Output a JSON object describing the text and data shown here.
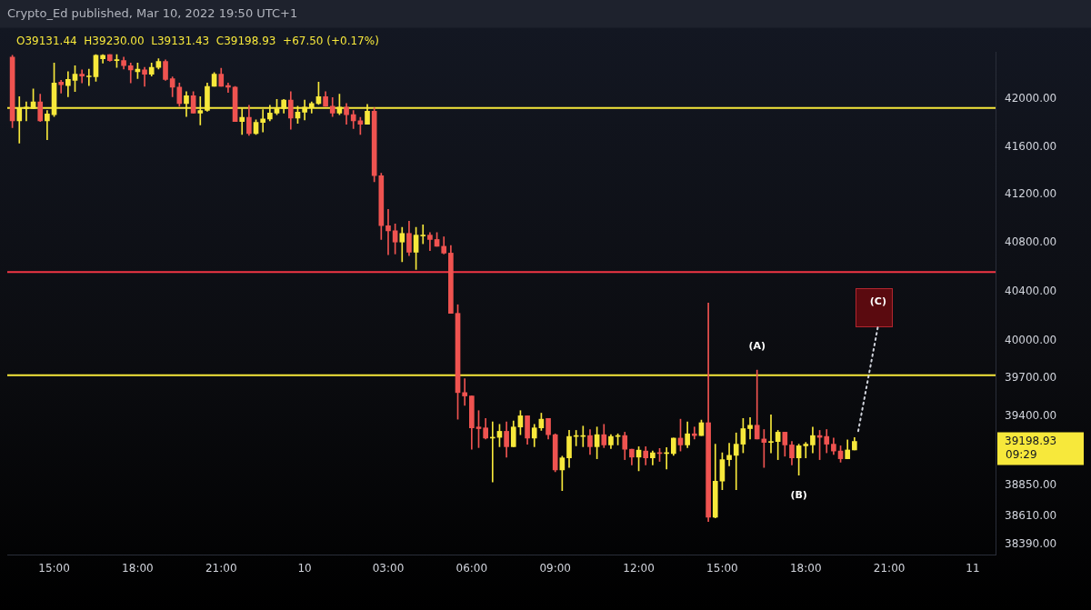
{
  "chart_data": {
    "type": "candlestick",
    "title": "Crypto_Ed published, Mar 10, 2022 19:50 UTC+1",
    "annotations": [
      "O39131.44  H39230.00  L39131.43  C39198.93  +67.50 (+0.17%)",
      {
        "text": "(A)",
        "x": "2022-03-10T16:15",
        "y": 39767
      },
      {
        "text": "(B)",
        "x": "2022-03-10T17:45",
        "y": 38933
      },
      {
        "text": "(C)",
        "x": "2022-03-10T20:36",
        "y": 40127
      },
      "09:29"
    ],
    "colors": [
      "#ef5350",
      "#f7e83b",
      "#f7e83b",
      "#f7e83b",
      "#ef5350",
      "#f7e83b",
      "#f7e83b",
      "#ef5350",
      "#f7e83b",
      "#f7e83b",
      "#ef5350",
      "#f7e83b",
      "#f7e83b",
      "#f7e83b",
      "#ef5350",
      "#f7e83b",
      "#ef5350",
      "#ef5350",
      "#f7e83b",
      "#ef5350",
      "#f7e83b",
      "#f7e83b",
      "#ef5350",
      "#ef5350",
      "#ef5350",
      "#f7e83b",
      "#ef5350",
      "#f7e83b",
      "#f7e83b",
      "#f7e83b",
      "#ef5350",
      "#ef5350",
      "#ef5350",
      "#f7e83b",
      "#ef5350",
      "#f7e83b",
      "#f7e83b",
      "#f7e83b",
      "#f7e83b",
      "#f7e83b",
      "#ef5350",
      "#f7e83b",
      "#f7e83b",
      "#f7e83b",
      "#f7e83b",
      "#ef5350",
      "#ef5350",
      "#f7e83b",
      "#ef5350",
      "#ef5350",
      "#ef5350",
      "#f7e83b",
      "#ef5350",
      "#ef5350",
      "#ef5350",
      "#ef5350",
      "#f7e83b",
      "#ef5350",
      "#f7e83b",
      "#f7e83b",
      "#ef5350",
      "#ef5350",
      "#ef5350",
      "#ef5350",
      "#ef5350",
      "#ef5350",
      "#ef5350",
      "#ef5350",
      "#ef5350",
      "#f7e83b",
      "#f7e83b",
      "#ef5350",
      "#f7e83b",
      "#f7e83b",
      "#ef5350",
      "#f7e83b",
      "#f7e83b",
      "#ef5350",
      "#ef5350",
      "#f7e83b",
      "#f7e83b",
      "#f7e83b",
      "#f7e83b",
      "#ef5350",
      "#f7e83b",
      "#ef5350",
      "#f7e83b",
      "#f7e83b",
      "#ef5350",
      "#ef5350",
      "#f7e83b",
      "#ef5350",
      "#f7e83b",
      "#ef5350",
      "#f7e83b",
      "#f7e83b",
      "#ef5350",
      "#f7e83b",
      "#ef5350",
      "#f7e83b",
      "#ef5350",
      "#f7e83b",
      "#f7e83b",
      "#f7e83b",
      "#f7e83b",
      "#f7e83b",
      "#f7e83b",
      "#ef5350",
      "#ef5350",
      "#f7e83b",
      "#f7e83b",
      "#ef5350",
      "#ef5350",
      "#f7e83b",
      "#f7e83b",
      "#f7e83b",
      "#ef5350",
      "#ef5350",
      "#ef5350",
      "#ef5350",
      "#f7e83b",
      "#f7e83b"
    ],
    "log": true,
    "xlim": [
      "2022-03-09T13:19",
      "2022-03-11T00:49"
    ],
    "xticks": [
      {
        "value": "2022-03-09T15:00",
        "label": "15:00"
      },
      {
        "value": "2022-03-09T18:00",
        "label": "18:00"
      },
      {
        "value": "2022-03-09T21:00",
        "label": "21:00"
      },
      {
        "value": "2022-03-10",
        "label": "10"
      },
      {
        "value": "2022-03-10T03:00",
        "label": "03:00"
      },
      {
        "value": "2022-03-10T06:00",
        "label": "06:00"
      },
      {
        "value": "2022-03-10T09:00",
        "label": "09:00"
      },
      {
        "value": "2022-03-10T12:00",
        "label": "12:00"
      },
      {
        "value": "2022-03-10T15:00",
        "label": "15:00"
      },
      {
        "value": "2022-03-10T18:00",
        "label": "18:00"
      },
      {
        "value": "2022-03-10T21:00",
        "label": "21:00"
      },
      {
        "value": "2022-03-11",
        "label": "11"
      }
    ],
    "ylim": [
      38310,
      42400
    ],
    "yticks": [
      {
        "value": 42000,
        "label": "42000.00"
      },
      {
        "value": 41600,
        "label": "41600.00"
      },
      {
        "value": 41200,
        "label": "41200.00"
      },
      {
        "value": 40800,
        "label": "40800.00"
      },
      {
        "value": 40400,
        "label": "40400.00"
      },
      {
        "value": 40000,
        "label": "40000.00"
      },
      {
        "value": 39700,
        "label": "39700.00"
      },
      {
        "value": 39400,
        "label": "39400.00"
      },
      39198.93,
      {
        "value": 38850,
        "label": "38850.00"
      },
      {
        "value": 38610,
        "label": "38610.00"
      },
      {
        "value": 38390,
        "label": "38390.00"
      }
    ],
    "ref_lines": [
      {
        "axis": "y",
        "value": 41928,
        "color": "#f7e83b"
      },
      {
        "axis": "y",
        "value": 40562,
        "color": "#f23645"
      },
      {
        "axis": "y",
        "value": 39725,
        "color": "#f7e83b"
      }
    ],
    "x": [
      "2022-03-09T13:30",
      "2022-03-09T13:45",
      "2022-03-09T14:00",
      "2022-03-09T14:15",
      "2022-03-09T14:30",
      "2022-03-09T14:45",
      "2022-03-09T15:00",
      "2022-03-09T15:15",
      "2022-03-09T15:30",
      "2022-03-09T15:45",
      "2022-03-09T16:00",
      "2022-03-09T16:15",
      "2022-03-09T16:30",
      "2022-03-09T16:45",
      "2022-03-09T17:00",
      "2022-03-09T17:15",
      "2022-03-09T17:30",
      "2022-03-09T17:45",
      "2022-03-09T18:00",
      "2022-03-09T18:15",
      "2022-03-09T18:30",
      "2022-03-09T18:45",
      "2022-03-09T19:00",
      "2022-03-09T19:15",
      "2022-03-09T19:30",
      "2022-03-09T19:45",
      "2022-03-09T20:00",
      "2022-03-09T20:15",
      "2022-03-09T20:30",
      "2022-03-09T20:45",
      "2022-03-09T21:00",
      "2022-03-09T21:15",
      "2022-03-09T21:30",
      "2022-03-09T21:45",
      "2022-03-09T22:00",
      "2022-03-09T22:15",
      "2022-03-09T22:30",
      "2022-03-09T22:45",
      "2022-03-09T23:00",
      "2022-03-09T23:15",
      "2022-03-09T23:30",
      "2022-03-09T23:45",
      "2022-03-10T00:00",
      "2022-03-10T00:15",
      "2022-03-10T00:30",
      "2022-03-10T00:45",
      "2022-03-10T01:00",
      "2022-03-10T01:15",
      "2022-03-10T01:30",
      "2022-03-10T01:45",
      "2022-03-10T02:00",
      "2022-03-10T02:15",
      "2022-03-10T02:30",
      "2022-03-10T02:45",
      "2022-03-10T03:00",
      "2022-03-10T03:15",
      "2022-03-10T03:30",
      "2022-03-10T03:45",
      "2022-03-10T04:00",
      "2022-03-10T04:15",
      "2022-03-10T04:30",
      "2022-03-10T04:45",
      "2022-03-10T05:00",
      "2022-03-10T05:15",
      "2022-03-10T05:30",
      "2022-03-10T05:45",
      "2022-03-10T06:00",
      "2022-03-10T06:15",
      "2022-03-10T06:30",
      "2022-03-10T06:45",
      "2022-03-10T07:00",
      "2022-03-10T07:15",
      "2022-03-10T07:30",
      "2022-03-10T07:45",
      "2022-03-10T08:00",
      "2022-03-10T08:15",
      "2022-03-10T08:30",
      "2022-03-10T08:45",
      "2022-03-10T09:00",
      "2022-03-10T09:15",
      "2022-03-10T09:30",
      "2022-03-10T09:45",
      "2022-03-10T10:00",
      "2022-03-10T10:15",
      "2022-03-10T10:30",
      "2022-03-10T10:45",
      "2022-03-10T11:00",
      "2022-03-10T11:15",
      "2022-03-10T11:30",
      "2022-03-10T11:45",
      "2022-03-10T12:00",
      "2022-03-10T12:15",
      "2022-03-10T12:30",
      "2022-03-10T12:45",
      "2022-03-10T13:00",
      "2022-03-10T13:15",
      "2022-03-10T13:30",
      "2022-03-10T13:45",
      "2022-03-10T14:00",
      "2022-03-10T14:15",
      "2022-03-10T14:30",
      "2022-03-10T14:45",
      "2022-03-10T15:00",
      "2022-03-10T15:15",
      "2022-03-10T15:30",
      "2022-03-10T15:45",
      "2022-03-10T16:00",
      "2022-03-10T16:15",
      "2022-03-10T16:30",
      "2022-03-10T16:45",
      "2022-03-10T17:00",
      "2022-03-10T17:15",
      "2022-03-10T17:30",
      "2022-03-10T17:45",
      "2022-03-10T18:00",
      "2022-03-10T18:15",
      "2022-03-10T18:30",
      "2022-03-10T18:45",
      "2022-03-10T19:00",
      "2022-03-10T19:15",
      "2022-03-10T19:30",
      "2022-03-10T19:45"
    ],
    "ohlc": [
      [
        42359,
        42374,
        41761,
        41819
      ],
      [
        41819,
        42022,
        41631,
        41928
      ],
      [
        41921,
        41978,
        41819,
        41935
      ],
      [
        41921,
        42088,
        41921,
        41978
      ],
      [
        41978,
        42044,
        41812,
        41819
      ],
      [
        41819,
        41906,
        41660,
        41877
      ],
      [
        41870,
        42308,
        41855,
        42139
      ],
      [
        42147,
        42161,
        42052,
        42125
      ],
      [
        42117,
        42235,
        42022,
        42169
      ],
      [
        42161,
        42286,
        42066,
        42213
      ],
      [
        42213,
        42250,
        42139,
        42198
      ],
      [
        42191,
        42257,
        42117,
        42198
      ],
      [
        42191,
        42381,
        42154,
        42374
      ],
      [
        42345,
        42381,
        42308,
        42374
      ],
      [
        42381,
        42381,
        42323,
        42330
      ],
      [
        42330,
        42381,
        42272,
        42337
      ],
      [
        42330,
        42359,
        42257,
        42286
      ],
      [
        42286,
        42308,
        42139,
        42250
      ],
      [
        42235,
        42308,
        42176,
        42257
      ],
      [
        42250,
        42272,
        42110,
        42213
      ],
      [
        42213,
        42308,
        42198,
        42272
      ],
      [
        42272,
        42345,
        42257,
        42323
      ],
      [
        42323,
        42337,
        42161,
        42169
      ],
      [
        42176,
        42191,
        42022,
        42103
      ],
      [
        42103,
        42139,
        41942,
        41964
      ],
      [
        41964,
        42066,
        41855,
        42030
      ],
      [
        42030,
        42066,
        41884,
        41884
      ],
      [
        41884,
        42022,
        41783,
        41906
      ],
      [
        41906,
        42139,
        41899,
        42110
      ],
      [
        42110,
        42228,
        42110,
        42213
      ],
      [
        42213,
        42264,
        42110,
        42110
      ],
      [
        42117,
        42139,
        42059,
        42103
      ],
      [
        42103,
        42110,
        41812,
        41812
      ],
      [
        41812,
        41921,
        41703,
        41848
      ],
      [
        41848,
        41950,
        41696,
        41711
      ],
      [
        41711,
        41826,
        41703,
        41805
      ],
      [
        41805,
        41913,
        41725,
        41834
      ],
      [
        41834,
        41950,
        41819,
        41884
      ],
      [
        41884,
        42000,
        41870,
        41921
      ],
      [
        41921,
        42000,
        41884,
        41993
      ],
      [
        41993,
        42066,
        41747,
        41841
      ],
      [
        41841,
        41942,
        41797,
        41892
      ],
      [
        41892,
        41993,
        41826,
        41935
      ],
      [
        41935,
        41978,
        41884,
        41964
      ],
      [
        41964,
        42147,
        41957,
        42022
      ],
      [
        42022,
        42066,
        41942,
        41942
      ],
      [
        41942,
        42015,
        41855,
        41884
      ],
      [
        41884,
        42044,
        41870,
        41935
      ],
      [
        41935,
        41964,
        41790,
        41870
      ],
      [
        41870,
        41906,
        41754,
        41819
      ],
      [
        41819,
        41848,
        41703,
        41790
      ],
      [
        41790,
        41957,
        41790,
        41899
      ],
      [
        41899,
        41928,
        41307,
        41358
      ],
      [
        41358,
        41379,
        40829,
        40943
      ],
      [
        40943,
        41078,
        40703,
        40901
      ],
      [
        40901,
        40957,
        40710,
        40808
      ],
      [
        40808,
        40929,
        40646,
        40879
      ],
      [
        40879,
        40979,
        40696,
        40724
      ],
      [
        40724,
        40929,
        40583,
        40865
      ],
      [
        40858,
        40950,
        40794,
        40865
      ],
      [
        40865,
        40886,
        40738,
        40829
      ],
      [
        40829,
        40886,
        40773,
        40773
      ],
      [
        40773,
        40851,
        40710,
        40717
      ],
      [
        40717,
        40780,
        40225,
        40225
      ],
      [
        40225,
        40295,
        39375,
        39587
      ],
      [
        39587,
        39698,
        39485,
        39560
      ],
      [
        39560,
        39560,
        39137,
        39306
      ],
      [
        39313,
        39443,
        39150,
        39300
      ],
      [
        39306,
        39381,
        39218,
        39225
      ],
      [
        39225,
        39354,
        38879,
        39231
      ],
      [
        39231,
        39334,
        39157,
        39279
      ],
      [
        39279,
        39354,
        39075,
        39157
      ],
      [
        39157,
        39361,
        39157,
        39313
      ],
      [
        39313,
        39443,
        39252,
        39402
      ],
      [
        39402,
        39402,
        39177,
        39225
      ],
      [
        39225,
        39334,
        39157,
        39306
      ],
      [
        39306,
        39423,
        39286,
        39375
      ],
      [
        39381,
        39381,
        39218,
        39252
      ],
      [
        39252,
        39259,
        38960,
        38974
      ],
      [
        38974,
        39082,
        38812,
        39069
      ],
      [
        39069,
        39286,
        38994,
        39238
      ],
      [
        39238,
        39286,
        39164,
        39245
      ],
      [
        39238,
        39320,
        39157,
        39245
      ],
      [
        39245,
        39293,
        39096,
        39157
      ],
      [
        39157,
        39313,
        39062,
        39252
      ],
      [
        39252,
        39334,
        39150,
        39171
      ],
      [
        39171,
        39252,
        39143,
        39238
      ],
      [
        39238,
        39259,
        39171,
        39245
      ],
      [
        39245,
        39272,
        39055,
        39137
      ],
      [
        39137,
        39137,
        39014,
        39075
      ],
      [
        39075,
        39157,
        38967,
        39130
      ],
      [
        39123,
        39157,
        39014,
        39069
      ],
      [
        39069,
        39123,
        39014,
        39109
      ],
      [
        39109,
        39143,
        39041,
        39103
      ],
      [
        39103,
        39150,
        38981,
        39109
      ],
      [
        39103,
        39225,
        39089,
        39225
      ],
      [
        39225,
        39375,
        39123,
        39171
      ],
      [
        39171,
        39354,
        39150,
        39259
      ],
      [
        39259,
        39313,
        39218,
        39245
      ],
      [
        39245,
        39368,
        39245,
        39347
      ],
      [
        39347,
        40309,
        38571,
        38604
      ],
      [
        38604,
        39177,
        38598,
        38886
      ],
      [
        38886,
        39109,
        38819,
        39055
      ],
      [
        39055,
        39184,
        39007,
        39089
      ],
      [
        39089,
        39266,
        38819,
        39177
      ],
      [
        39177,
        39381,
        39109,
        39300
      ],
      [
        39300,
        39388,
        39218,
        39327
      ],
      [
        39327,
        39767,
        39218,
        39218
      ],
      [
        39218,
        39293,
        38994,
        39191
      ],
      [
        39191,
        39409,
        39109,
        39198
      ],
      [
        39198,
        39286,
        39055,
        39272
      ],
      [
        39272,
        39272,
        39082,
        39171
      ],
      [
        39171,
        39198,
        39014,
        39069
      ],
      [
        39069,
        39177,
        38933,
        39164
      ],
      [
        39164,
        39191,
        39069,
        39177
      ],
      [
        39171,
        39313,
        39109,
        39245
      ],
      [
        39245,
        39286,
        39055,
        39231
      ],
      [
        39238,
        39293,
        39109,
        39177
      ],
      [
        39177,
        39225,
        39096,
        39123
      ],
      [
        39123,
        39164,
        39035,
        39062
      ],
      [
        39062,
        39211,
        39062,
        39131.43
      ],
      [
        39131.44,
        39230.0,
        39131.43,
        39198.93
      ]
    ],
    "series": [
      {
        "type": "line",
        "x": [
          "2022-03-10T19:53",
          "2022-03-10T20:36"
        ],
        "values": [
          39280,
          40127
        ],
        "color": "#d1d4dc",
        "line_style": "dotted",
        "marker": "none"
      }
    ]
  }
}
